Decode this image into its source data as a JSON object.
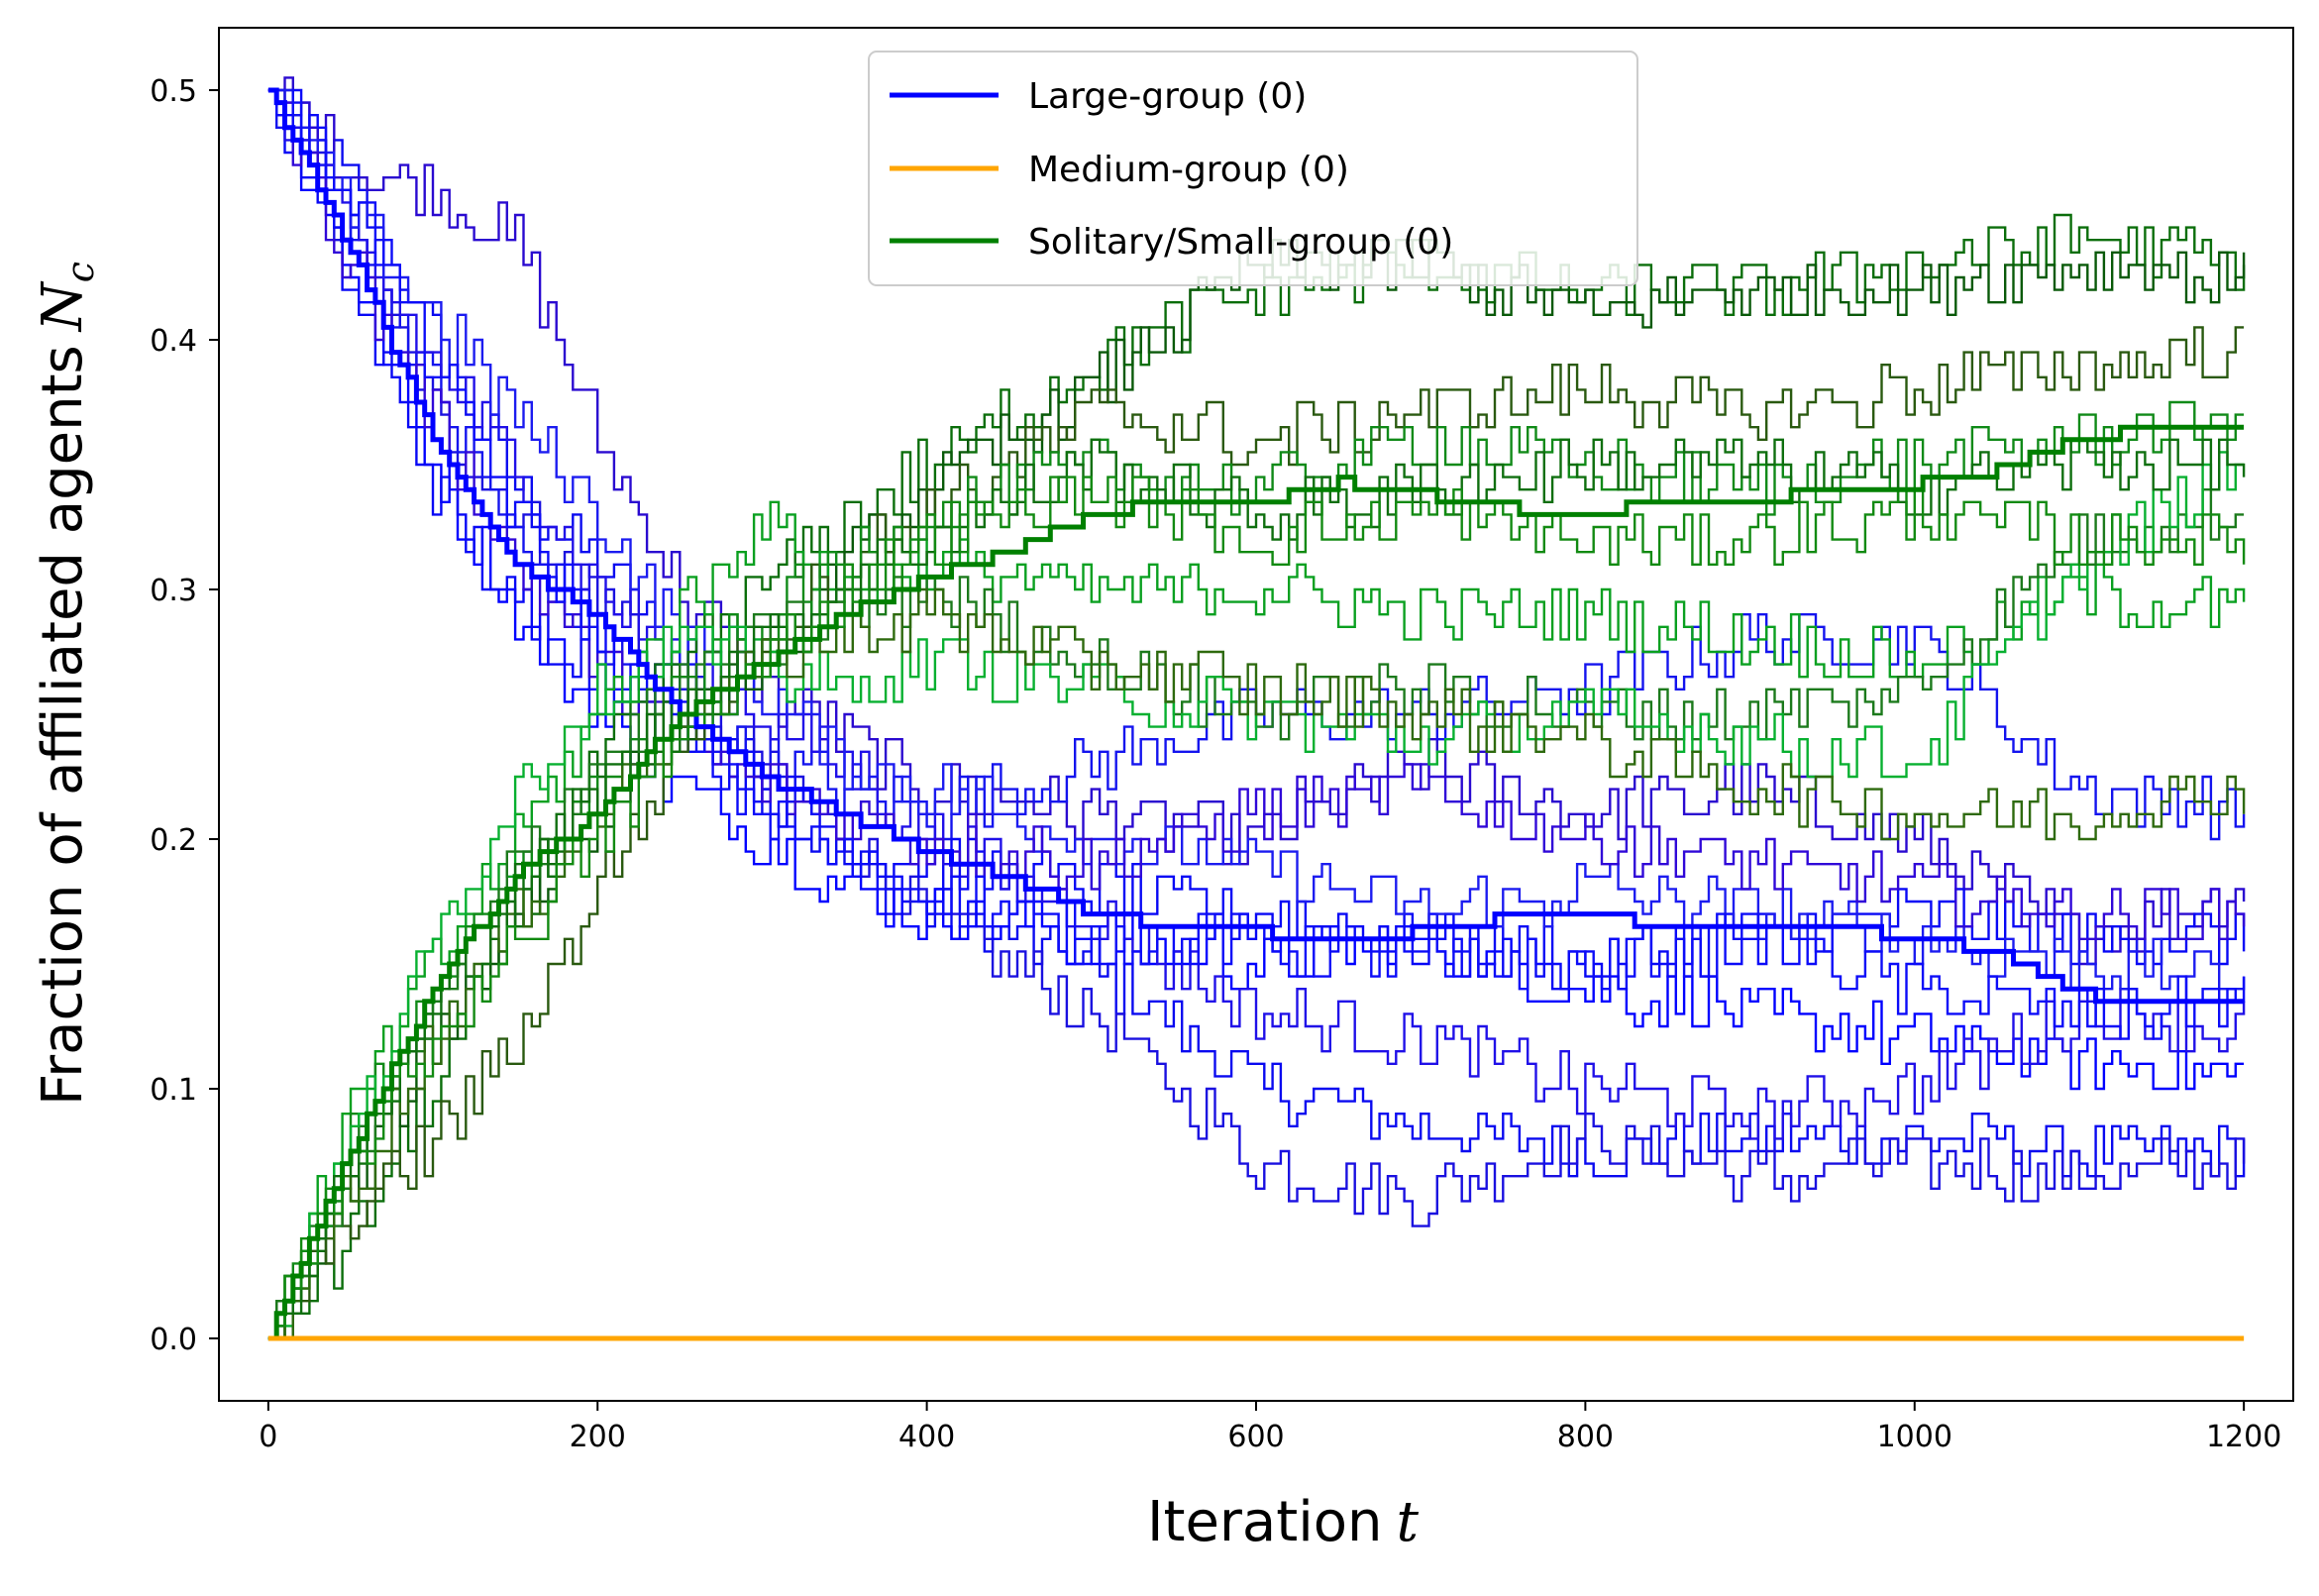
{
  "chart_data": {
    "type": "line",
    "title": "",
    "xlabel": "Iteration",
    "xlabel_var": "t",
    "ylabel": "Fraction of affiliated agents",
    "ylabel_var": "N",
    "ylabel_sub": "c",
    "xlim": [
      -30,
      1230
    ],
    "ylim": [
      -0.025,
      0.525
    ],
    "xticks": [
      0,
      200,
      400,
      600,
      800,
      1000,
      1200
    ],
    "yticks": [
      0.0,
      0.1,
      0.2,
      0.3,
      0.4,
      0.5
    ],
    "xtick_labels": [
      "0",
      "200",
      "400",
      "600",
      "800",
      "1000",
      "1200"
    ],
    "ytick_labels": [
      "0.0",
      "0.1",
      "0.2",
      "0.3",
      "0.4",
      "0.5"
    ],
    "grid": false,
    "legend_position": "top-center",
    "legend": [
      {
        "name": "Large-group (0)",
        "color": "#0000ff"
      },
      {
        "name": "Medium-group (0)",
        "color": "#ffa500"
      },
      {
        "name": "Solitary/Small-group (0)",
        "color": "#008000"
      }
    ],
    "series": [
      {
        "name": "Large-group (0)",
        "role": "mean",
        "color": "#0000ff",
        "x": [
          0,
          50,
          100,
          150,
          200,
          250,
          300,
          350,
          400,
          450,
          500,
          550,
          600,
          650,
          700,
          750,
          800,
          850,
          900,
          950,
          1000,
          1050,
          1100,
          1150,
          1200
        ],
        "y": [
          0.5,
          0.435,
          0.36,
          0.31,
          0.29,
          0.25,
          0.225,
          0.21,
          0.195,
          0.185,
          0.17,
          0.165,
          0.163,
          0.158,
          0.163,
          0.168,
          0.17,
          0.165,
          0.163,
          0.165,
          0.16,
          0.155,
          0.138,
          0.135,
          0.137
        ]
      },
      {
        "name": "Solitary/Small-group (0)",
        "role": "mean",
        "color": "#008000",
        "x": [
          0,
          50,
          100,
          150,
          200,
          250,
          300,
          350,
          400,
          450,
          500,
          550,
          600,
          650,
          700,
          750,
          800,
          850,
          900,
          950,
          1000,
          1050,
          1100,
          1150,
          1200
        ],
        "y": [
          0.0,
          0.075,
          0.14,
          0.185,
          0.21,
          0.25,
          0.27,
          0.29,
          0.305,
          0.315,
          0.33,
          0.335,
          0.335,
          0.343,
          0.338,
          0.333,
          0.33,
          0.335,
          0.335,
          0.34,
          0.342,
          0.348,
          0.36,
          0.365,
          0.363
        ]
      },
      {
        "name": "Medium-group (0)",
        "role": "mean",
        "color": "#ffa500",
        "x": [
          0,
          1200
        ],
        "y": [
          0.0,
          0.0
        ]
      },
      {
        "role": "run",
        "group": "large",
        "color": "#0a0af0",
        "x": [
          0,
          50,
          100,
          150,
          200,
          250,
          300,
          350,
          400,
          500,
          600,
          700,
          800,
          900,
          1000,
          1100,
          1200
        ],
        "y": [
          0.5,
          0.46,
          0.4,
          0.34,
          0.31,
          0.27,
          0.22,
          0.19,
          0.17,
          0.15,
          0.1,
          0.085,
          0.075,
          0.08,
          0.08,
          0.075,
          0.075
        ]
      },
      {
        "role": "run",
        "group": "large",
        "color": "#1a10e0",
        "x": [
          0,
          50,
          100,
          150,
          200,
          250,
          300,
          350,
          400,
          500,
          600,
          700,
          800,
          900,
          1000,
          1100,
          1200
        ],
        "y": [
          0.5,
          0.44,
          0.37,
          0.33,
          0.3,
          0.26,
          0.23,
          0.2,
          0.17,
          0.13,
          0.07,
          0.055,
          0.08,
          0.065,
          0.07,
          0.065,
          0.07
        ]
      },
      {
        "role": "run",
        "group": "large",
        "color": "#2a0ad0",
        "x": [
          0,
          50,
          100,
          150,
          200,
          250,
          300,
          350,
          400,
          500,
          600,
          700,
          800,
          900,
          1000,
          1100,
          1200
        ],
        "y": [
          0.5,
          0.47,
          0.46,
          0.44,
          0.36,
          0.3,
          0.26,
          0.24,
          0.22,
          0.21,
          0.2,
          0.23,
          0.21,
          0.22,
          0.2,
          0.16,
          0.18
        ]
      },
      {
        "role": "run",
        "group": "large",
        "color": "#0000ff",
        "x": [
          0,
          50,
          100,
          150,
          200,
          250,
          300,
          350,
          400,
          500,
          600,
          700,
          800,
          900,
          1000,
          1100,
          1200
        ],
        "y": [
          0.5,
          0.43,
          0.35,
          0.29,
          0.25,
          0.22,
          0.2,
          0.18,
          0.17,
          0.16,
          0.15,
          0.16,
          0.14,
          0.13,
          0.12,
          0.11,
          0.105
        ]
      },
      {
        "role": "run",
        "group": "large",
        "color": "#1414ee",
        "x": [
          0,
          50,
          100,
          150,
          200,
          250,
          300,
          350,
          400,
          500,
          600,
          700,
          800,
          900,
          1000,
          1100,
          1200
        ],
        "y": [
          0.5,
          0.45,
          0.38,
          0.32,
          0.28,
          0.25,
          0.23,
          0.22,
          0.21,
          0.23,
          0.25,
          0.25,
          0.26,
          0.28,
          0.28,
          0.22,
          0.21
        ]
      },
      {
        "role": "run",
        "group": "large",
        "color": "#0808f5",
        "x": [
          0,
          50,
          100,
          150,
          200,
          250,
          300,
          350,
          400,
          500,
          600,
          700,
          800,
          900,
          1000,
          1100,
          1200
        ],
        "y": [
          0.5,
          0.42,
          0.34,
          0.29,
          0.27,
          0.25,
          0.22,
          0.2,
          0.19,
          0.18,
          0.17,
          0.16,
          0.15,
          0.16,
          0.17,
          0.16,
          0.16
        ]
      },
      {
        "role": "run",
        "group": "large",
        "color": "#2010e8",
        "x": [
          0,
          50,
          100,
          150,
          200,
          250,
          300,
          350,
          400,
          500,
          600,
          700,
          800,
          900,
          1000,
          1100,
          1200
        ],
        "y": [
          0.5,
          0.44,
          0.39,
          0.35,
          0.3,
          0.27,
          0.25,
          0.23,
          0.2,
          0.17,
          0.13,
          0.12,
          0.1,
          0.09,
          0.1,
          0.13,
          0.125
        ]
      },
      {
        "role": "run",
        "group": "large",
        "color": "#1c1cf0",
        "x": [
          0,
          50,
          100,
          150,
          200,
          250,
          300,
          350,
          400,
          500,
          600,
          700,
          800,
          900,
          1000,
          1100,
          1200
        ],
        "y": [
          0.5,
          0.45,
          0.41,
          0.37,
          0.33,
          0.28,
          0.26,
          0.23,
          0.22,
          0.2,
          0.19,
          0.17,
          0.18,
          0.17,
          0.16,
          0.15,
          0.145
        ]
      },
      {
        "role": "run",
        "group": "large",
        "color": "#3008d8",
        "x": [
          0,
          50,
          100,
          150,
          200,
          250,
          300,
          350,
          400,
          500,
          600,
          700,
          800,
          900,
          1000,
          1100,
          1200
        ],
        "y": [
          0.5,
          0.43,
          0.37,
          0.31,
          0.27,
          0.24,
          0.22,
          0.21,
          0.2,
          0.19,
          0.21,
          0.22,
          0.2,
          0.19,
          0.18,
          0.17,
          0.17
        ]
      },
      {
        "role": "run",
        "group": "large",
        "color": "#0c0cf8",
        "x": [
          0,
          50,
          100,
          150,
          200,
          250,
          300,
          350,
          400,
          500,
          600,
          700,
          800,
          900,
          1000,
          1100,
          1200
        ],
        "y": [
          0.5,
          0.46,
          0.39,
          0.33,
          0.28,
          0.24,
          0.21,
          0.19,
          0.18,
          0.16,
          0.16,
          0.15,
          0.15,
          0.16,
          0.14,
          0.13,
          0.135
        ]
      },
      {
        "role": "run",
        "group": "small",
        "color": "#0b6e0b",
        "x": [
          0,
          50,
          100,
          150,
          200,
          250,
          300,
          350,
          400,
          500,
          600,
          700,
          800,
          900,
          1000,
          1100,
          1200
        ],
        "y": [
          0.0,
          0.04,
          0.1,
          0.17,
          0.23,
          0.27,
          0.3,
          0.33,
          0.35,
          0.39,
          0.42,
          0.43,
          0.42,
          0.42,
          0.43,
          0.44,
          0.43
        ]
      },
      {
        "role": "run",
        "group": "small",
        "color": "#0a5a0a",
        "x": [
          0,
          50,
          100,
          150,
          200,
          250,
          300,
          350,
          400,
          500,
          600,
          700,
          800,
          900,
          1000,
          1100,
          1200
        ],
        "y": [
          0.0,
          0.06,
          0.12,
          0.17,
          0.21,
          0.25,
          0.27,
          0.31,
          0.34,
          0.38,
          0.43,
          0.43,
          0.41,
          0.42,
          0.42,
          0.43,
          0.425
        ]
      },
      {
        "role": "run",
        "group": "small",
        "color": "#0aa020",
        "x": [
          0,
          50,
          100,
          150,
          200,
          250,
          300,
          350,
          400,
          500,
          600,
          700,
          800,
          900,
          1000,
          1100,
          1200
        ],
        "y": [
          0.0,
          0.09,
          0.15,
          0.2,
          0.25,
          0.29,
          0.33,
          0.3,
          0.31,
          0.3,
          0.3,
          0.29,
          0.29,
          0.28,
          0.27,
          0.3,
          0.29
        ]
      },
      {
        "role": "run",
        "group": "small",
        "color": "#2a5a10",
        "x": [
          0,
          50,
          100,
          150,
          200,
          250,
          300,
          350,
          400,
          500,
          600,
          700,
          800,
          900,
          1000,
          1100,
          1200
        ],
        "y": [
          0.0,
          0.05,
          0.08,
          0.12,
          0.18,
          0.24,
          0.28,
          0.31,
          0.33,
          0.37,
          0.36,
          0.37,
          0.38,
          0.37,
          0.38,
          0.39,
          0.395
        ]
      },
      {
        "role": "run",
        "group": "small",
        "color": "#108a18",
        "x": [
          0,
          50,
          100,
          150,
          200,
          250,
          300,
          350,
          400,
          500,
          600,
          700,
          800,
          900,
          1000,
          1100,
          1200
        ],
        "y": [
          0.0,
          0.08,
          0.14,
          0.18,
          0.22,
          0.26,
          0.29,
          0.31,
          0.33,
          0.35,
          0.34,
          0.36,
          0.35,
          0.34,
          0.35,
          0.36,
          0.37
        ]
      },
      {
        "role": "run",
        "group": "small",
        "color": "#1c7a1c",
        "x": [
          0,
          50,
          100,
          150,
          200,
          250,
          300,
          350,
          400,
          500,
          600,
          700,
          800,
          900,
          1000,
          1100,
          1200
        ],
        "y": [
          0.0,
          0.07,
          0.13,
          0.19,
          0.23,
          0.26,
          0.28,
          0.29,
          0.3,
          0.27,
          0.25,
          0.26,
          0.25,
          0.25,
          0.26,
          0.32,
          0.33
        ]
      },
      {
        "role": "run",
        "group": "small",
        "color": "#08b030",
        "x": [
          0,
          50,
          100,
          150,
          200,
          250,
          300,
          350,
          400,
          500,
          600,
          700,
          800,
          900,
          1000,
          1100,
          1200
        ],
        "y": [
          0.0,
          0.08,
          0.16,
          0.22,
          0.26,
          0.28,
          0.27,
          0.26,
          0.27,
          0.26,
          0.25,
          0.24,
          0.25,
          0.24,
          0.23,
          0.31,
          0.35
        ]
      },
      {
        "role": "run",
        "group": "small",
        "color": "#2e6a0e",
        "x": [
          0,
          50,
          100,
          150,
          200,
          250,
          300,
          350,
          400,
          500,
          600,
          700,
          800,
          900,
          1000,
          1100,
          1200
        ],
        "y": [
          0.0,
          0.06,
          0.12,
          0.17,
          0.21,
          0.25,
          0.27,
          0.28,
          0.29,
          0.27,
          0.26,
          0.25,
          0.24,
          0.22,
          0.21,
          0.21,
          0.22
        ]
      },
      {
        "role": "run",
        "group": "small",
        "color": "#0f6f0f",
        "x": [
          0,
          50,
          100,
          150,
          200,
          250,
          300,
          350,
          400,
          500,
          600,
          700,
          800,
          900,
          1000,
          1100,
          1200
        ],
        "y": [
          0.0,
          0.07,
          0.13,
          0.18,
          0.22,
          0.25,
          0.28,
          0.3,
          0.32,
          0.35,
          0.33,
          0.34,
          0.35,
          0.35,
          0.34,
          0.35,
          0.35
        ]
      },
      {
        "role": "run",
        "group": "small",
        "color": "#128a12",
        "x": [
          0,
          50,
          100,
          150,
          200,
          250,
          300,
          350,
          400,
          500,
          600,
          700,
          800,
          900,
          1000,
          1100,
          1200
        ],
        "y": [
          0.0,
          0.07,
          0.12,
          0.16,
          0.2,
          0.24,
          0.27,
          0.3,
          0.32,
          0.34,
          0.32,
          0.33,
          0.32,
          0.32,
          0.33,
          0.32,
          0.32
        ]
      }
    ]
  }
}
